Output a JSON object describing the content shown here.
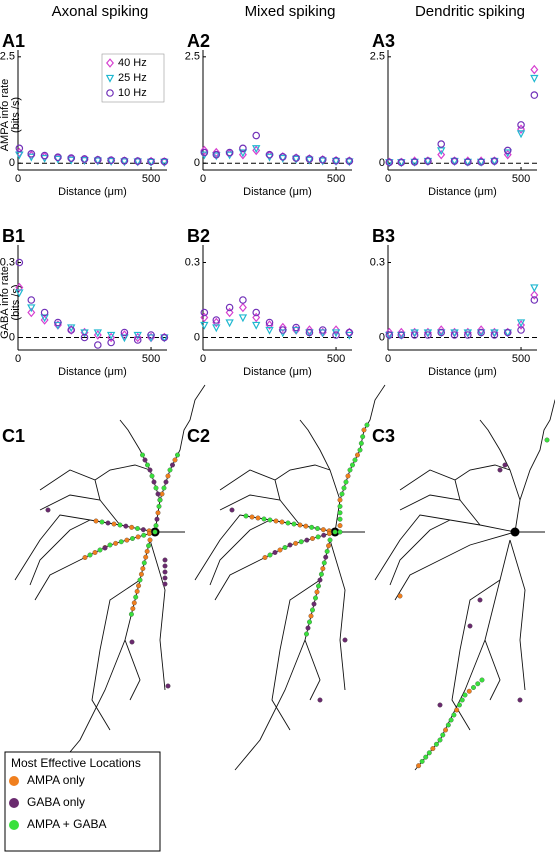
{
  "column_titles": [
    "Axonal spiking",
    "Mixed spiking",
    "Dendritic spiking"
  ],
  "chart_data": [
    {
      "type": "scatter",
      "panel": "A1",
      "ylabel": [
        "AMPA info rate",
        "(bits /s)"
      ],
      "xlabel": "Distance (μm)",
      "x": [
        5,
        50,
        100,
        150,
        200,
        250,
        300,
        350,
        400,
        450,
        500,
        550
      ],
      "xlim": [
        0,
        560
      ],
      "xticks": [
        0,
        500
      ],
      "ylim": [
        -0.16,
        2.66
      ],
      "yticks": [
        0,
        2.5
      ],
      "zero_line": true,
      "legend": "upper-right",
      "series": [
        {
          "name": "40 Hz",
          "color": "#d63fd0",
          "marker": "diamond",
          "values": [
            0.25,
            0.18,
            0.15,
            0.12,
            0.1,
            0.08,
            0.07,
            0.06,
            0.05,
            0.04,
            0.04,
            0.03
          ]
        },
        {
          "name": "25 Hz",
          "color": "#20b8d0",
          "marker": "triangle",
          "values": [
            0.2,
            0.15,
            0.12,
            0.1,
            0.08,
            0.07,
            0.06,
            0.05,
            0.04,
            0.04,
            0.03,
            0.03
          ]
        },
        {
          "name": "10 Hz",
          "color": "#7030b8",
          "marker": "circle",
          "values": [
            0.35,
            0.22,
            0.18,
            0.14,
            0.12,
            0.1,
            0.08,
            0.07,
            0.06,
            0.05,
            0.04,
            0.04
          ]
        }
      ]
    },
    {
      "type": "scatter",
      "panel": "A2",
      "xlabel": "Distance (μm)",
      "x": [
        5,
        50,
        100,
        150,
        200,
        250,
        300,
        350,
        400,
        450,
        500,
        550
      ],
      "xlim": [
        0,
        560
      ],
      "xticks": [
        0,
        500
      ],
      "ylim": [
        -0.16,
        2.66
      ],
      "yticks": [
        0,
        2.5
      ],
      "zero_line": true,
      "series": [
        {
          "color": "#d63fd0",
          "marker": "diamond",
          "values": [
            0.3,
            0.25,
            0.22,
            0.2,
            0.3,
            0.18,
            0.15,
            0.12,
            0.1,
            0.08,
            0.06,
            0.05
          ]
        },
        {
          "color": "#20b8d0",
          "marker": "triangle",
          "values": [
            0.2,
            0.18,
            0.2,
            0.25,
            0.35,
            0.15,
            0.12,
            0.1,
            0.08,
            0.06,
            0.05,
            0.04
          ]
        },
        {
          "color": "#7030b8",
          "marker": "circle",
          "values": [
            0.25,
            0.2,
            0.25,
            0.35,
            0.65,
            0.2,
            0.15,
            0.12,
            0.1,
            0.08,
            0.06,
            0.05
          ]
        }
      ]
    },
    {
      "type": "scatter",
      "panel": "A3",
      "xlabel": "Distance (μm)",
      "x": [
        5,
        50,
        100,
        150,
        200,
        250,
        300,
        350,
        400,
        450,
        500,
        550
      ],
      "xlim": [
        0,
        560
      ],
      "xticks": [
        0,
        500
      ],
      "ylim": [
        -0.16,
        2.66
      ],
      "yticks": [
        0,
        2.5
      ],
      "zero_line": true,
      "series": [
        {
          "color": "#d63fd0",
          "marker": "diamond",
          "values": [
            0.02,
            0.02,
            0.05,
            0.05,
            0.2,
            0.05,
            0.05,
            0.05,
            0.05,
            0.2,
            0.8,
            2.2
          ]
        },
        {
          "color": "#20b8d0",
          "marker": "triangle",
          "values": [
            0.02,
            0.02,
            0.03,
            0.05,
            0.3,
            0.05,
            0.03,
            0.03,
            0.05,
            0.25,
            0.7,
            2.0
          ]
        },
        {
          "color": "#7030b8",
          "marker": "circle",
          "values": [
            0.02,
            0.02,
            0.03,
            0.05,
            0.45,
            0.05,
            0.03,
            0.03,
            0.05,
            0.3,
            0.9,
            1.6
          ]
        }
      ]
    },
    {
      "type": "scatter",
      "panel": "B1",
      "ylabel": [
        "GABA info rate",
        "(bits /s)"
      ],
      "xlabel": "Distance (μm)",
      "x": [
        5,
        50,
        100,
        150,
        200,
        250,
        300,
        350,
        400,
        450,
        500,
        550
      ],
      "xlim": [
        0,
        560
      ],
      "xticks": [
        0,
        500
      ],
      "ylim": [
        -0.05,
        0.37
      ],
      "yticks": [
        0,
        0.3
      ],
      "zero_line": true,
      "series": [
        {
          "color": "#d63fd0",
          "marker": "diamond",
          "values": [
            0.2,
            0.1,
            0.07,
            0.05,
            0.03,
            0.02,
            0.01,
            0.0,
            0.01,
            0.0,
            0.0,
            0.0
          ]
        },
        {
          "color": "#20b8d0",
          "marker": "triangle",
          "values": [
            0.18,
            0.12,
            0.08,
            0.05,
            0.04,
            0.02,
            0.02,
            0.01,
            0.0,
            0.01,
            0.0,
            0.0
          ]
        },
        {
          "color": "#7030b8",
          "marker": "circle",
          "values": [
            0.3,
            0.15,
            0.1,
            0.06,
            0.03,
            0.0,
            -0.03,
            -0.02,
            0.02,
            -0.01,
            0.01,
            0.0
          ]
        }
      ]
    },
    {
      "type": "scatter",
      "panel": "B2",
      "xlabel": "Distance (μm)",
      "x": [
        5,
        50,
        100,
        150,
        200,
        250,
        300,
        350,
        400,
        450,
        500,
        550
      ],
      "xlim": [
        0,
        560
      ],
      "xticks": [
        0,
        500
      ],
      "ylim": [
        -0.05,
        0.37
      ],
      "yticks": [
        0,
        0.3
      ],
      "zero_line": true,
      "series": [
        {
          "color": "#d63fd0",
          "marker": "diamond",
          "values": [
            0.08,
            0.06,
            0.1,
            0.12,
            0.08,
            0.05,
            0.04,
            0.03,
            0.03,
            0.02,
            0.03,
            0.02
          ]
        },
        {
          "color": "#20b8d0",
          "marker": "triangle",
          "values": [
            0.05,
            0.04,
            0.06,
            0.08,
            0.05,
            0.03,
            0.02,
            0.03,
            0.02,
            0.02,
            0.02,
            0.01
          ]
        },
        {
          "color": "#7030b8",
          "marker": "circle",
          "values": [
            0.1,
            0.07,
            0.12,
            0.15,
            0.1,
            0.06,
            0.03,
            0.04,
            0.02,
            0.03,
            0.01,
            0.02
          ]
        }
      ]
    },
    {
      "type": "scatter",
      "panel": "B3",
      "xlabel": "Distance (μm)",
      "x": [
        5,
        50,
        100,
        150,
        200,
        250,
        300,
        350,
        400,
        450,
        500,
        550
      ],
      "xlim": [
        0,
        560
      ],
      "xticks": [
        0,
        500
      ],
      "ylim": [
        -0.05,
        0.37
      ],
      "yticks": [
        0,
        0.3
      ],
      "zero_line": true,
      "series": [
        {
          "color": "#d63fd0",
          "marker": "diamond",
          "values": [
            0.02,
            0.02,
            0.02,
            0.02,
            0.03,
            0.02,
            0.02,
            0.03,
            0.02,
            0.02,
            0.05,
            0.17
          ]
        },
        {
          "color": "#20b8d0",
          "marker": "triangle",
          "values": [
            0.01,
            0.01,
            0.02,
            0.02,
            0.02,
            0.02,
            0.02,
            0.02,
            0.02,
            0.02,
            0.06,
            0.2
          ]
        },
        {
          "color": "#7030b8",
          "marker": "circle",
          "values": [
            0.01,
            0.01,
            0.01,
            0.01,
            0.02,
            0.01,
            0.01,
            0.02,
            0.01,
            0.02,
            0.03,
            0.15
          ]
        }
      ]
    }
  ],
  "morphology": {
    "panels": [
      "C1",
      "C2",
      "C3"
    ],
    "legend": {
      "title": "Most Effective Locations",
      "entries": [
        {
          "label": "AMPA only",
          "color": "#f07f1e"
        },
        {
          "label": "GABA only",
          "color": "#6a2a6e"
        },
        {
          "label": "AMPA + GABA",
          "color": "#39e03c"
        }
      ]
    }
  }
}
